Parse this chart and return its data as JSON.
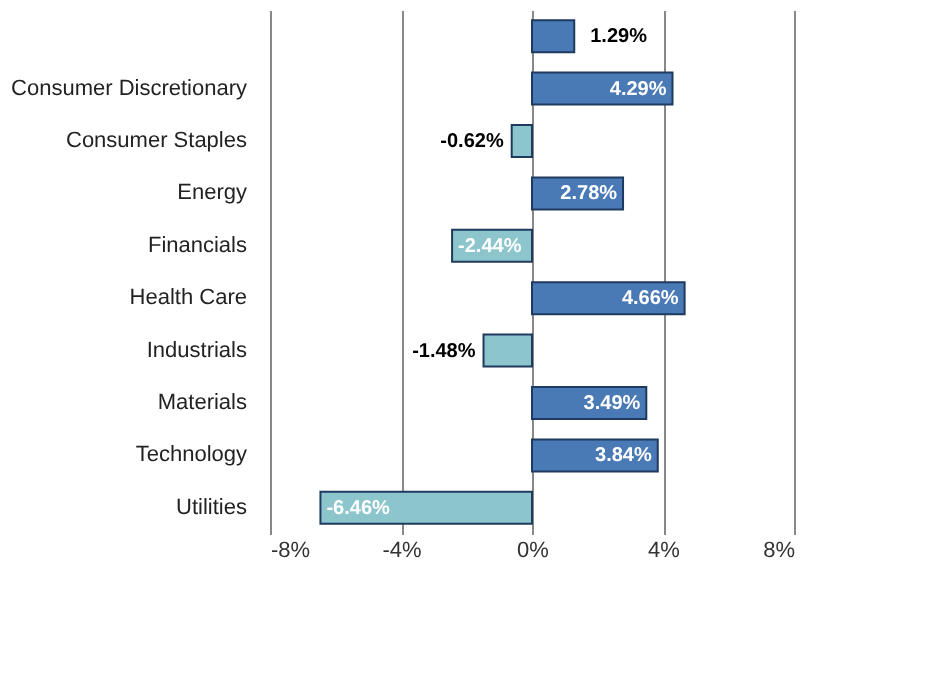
{
  "chart_data": {
    "type": "bar",
    "orientation": "horizontal",
    "categories": [
      null,
      "Consumer Discretionary",
      "Consumer Staples",
      "Energy",
      "Financials",
      "Health Care",
      "Industrials",
      "Materials",
      "Technology",
      "Utilities"
    ],
    "values": [
      1.29,
      4.29,
      -0.62,
      2.78,
      -2.44,
      4.66,
      -1.48,
      3.49,
      3.84,
      -6.46
    ],
    "colors": [
      "#4a7ab5",
      "#4a7ab5",
      "#8cc5cc",
      "#4a7ab5",
      "#8cc5cc",
      "#4a7ab5",
      "#8cc5cc",
      "#4a7ab5",
      "#4a7ab5",
      "#8cc5cc"
    ],
    "value_labels": [
      "1.29%",
      "4.29%",
      "-0.62%",
      "2.78%",
      "-2.44%",
      "4.66%",
      "-1.48%",
      "3.49%",
      "3.84%",
      "-6.46%"
    ],
    "xlim": [
      -8,
      8
    ],
    "xticks": [
      {
        "value": -8,
        "label": "-8%"
      },
      {
        "value": -4,
        "label": "-4%"
      },
      {
        "value": 0,
        "label": "0%"
      },
      {
        "value": 4,
        "label": "4%"
      },
      {
        "value": 8,
        "label": "8%"
      }
    ],
    "grid": "x"
  }
}
